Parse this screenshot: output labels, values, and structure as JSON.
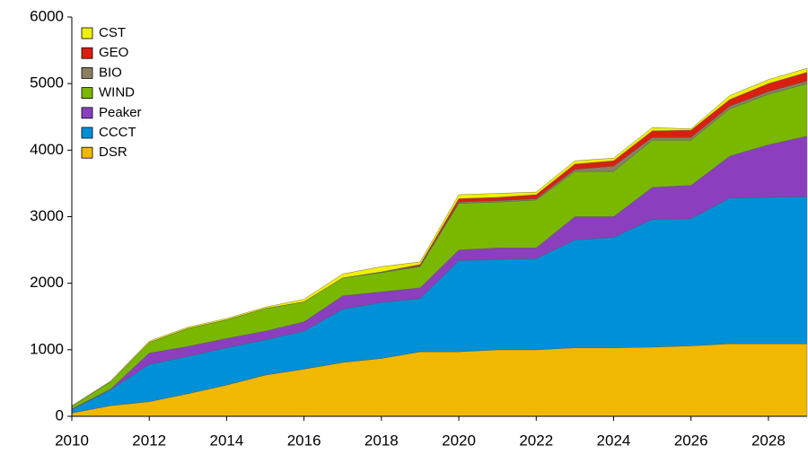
{
  "chart_data": {
    "type": "stacked-area",
    "x": [
      2010,
      2011,
      2012,
      2013,
      2014,
      2015,
      2016,
      2017,
      2018,
      2019,
      2020,
      2021,
      2022,
      2023,
      2024,
      2025,
      2026,
      2027,
      2028,
      2029
    ],
    "series": [
      {
        "name": "DSR",
        "color": "#f0b800",
        "values": [
          50,
          160,
          220,
          340,
          470,
          620,
          710,
          810,
          870,
          970,
          970,
          1000,
          1000,
          1030,
          1030,
          1040,
          1060,
          1090,
          1090,
          1090
        ]
      },
      {
        "name": "CCCT",
        "color": "#0090d8",
        "values": [
          50,
          240,
          560,
          560,
          560,
          530,
          570,
          800,
          840,
          800,
          1370,
          1360,
          1370,
          1620,
          1660,
          1920,
          1910,
          2190,
          2200,
          2210
        ]
      },
      {
        "name": "Peaker",
        "color": "#8b3fbf",
        "values": [
          10,
          10,
          170,
          150,
          140,
          130,
          140,
          200,
          160,
          160,
          160,
          170,
          160,
          350,
          310,
          480,
          500,
          630,
          790,
          910
        ]
      },
      {
        "name": "WIND",
        "color": "#7ab800",
        "values": [
          40,
          110,
          160,
          270,
          280,
          340,
          300,
          270,
          290,
          320,
          700,
          690,
          720,
          680,
          680,
          710,
          680,
          710,
          760,
          790
        ]
      },
      {
        "name": "BIO",
        "color": "#8a8060",
        "values": [
          0,
          0,
          0,
          0,
          0,
          0,
          0,
          0,
          10,
          10,
          20,
          20,
          20,
          30,
          80,
          40,
          40,
          40,
          40,
          40
        ]
      },
      {
        "name": "GEO",
        "color": "#d92010",
        "values": [
          0,
          0,
          0,
          0,
          0,
          0,
          0,
          0,
          0,
          20,
          50,
          50,
          60,
          80,
          80,
          100,
          110,
          100,
          120,
          130
        ]
      },
      {
        "name": "CST",
        "color": "#f0f000",
        "values": [
          10,
          10,
          20,
          20,
          20,
          20,
          40,
          60,
          80,
          40,
          60,
          60,
          40,
          50,
          40,
          50,
          20,
          60,
          60,
          60
        ]
      }
    ],
    "xlim": [
      2010,
      2029
    ],
    "xticks": [
      2010,
      2012,
      2014,
      2016,
      2018,
      2020,
      2022,
      2024,
      2026,
      2028
    ],
    "ylim": [
      0,
      6000
    ],
    "yticks": [
      0,
      1000,
      2000,
      3000,
      4000,
      5000,
      6000
    ],
    "grid": false,
    "legend": "upper left"
  }
}
